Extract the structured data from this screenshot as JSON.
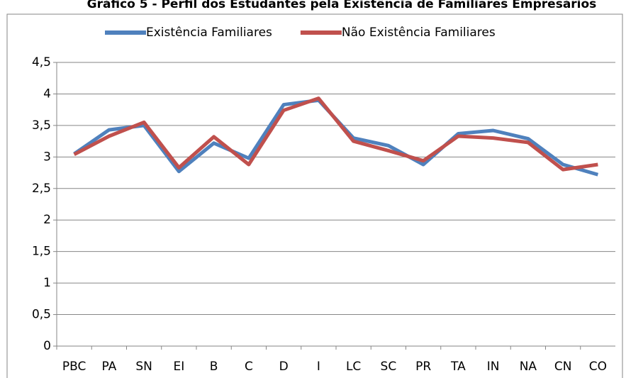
{
  "chart_data": {
    "type": "line",
    "title": "Gráfico 5 - Perfil dos Estudantes pela Existência de Familiares Empresários",
    "categories": [
      "PBC",
      "PA",
      "SN",
      "EI",
      "B",
      "C",
      "D",
      "I",
      "LC",
      "SC",
      "PR",
      "TA",
      "IN",
      "NA",
      "CN",
      "CO"
    ],
    "series": [
      {
        "name": "Existência Familiares",
        "color": "#4f81bd",
        "values": [
          3.05,
          3.43,
          3.5,
          2.77,
          3.22,
          2.98,
          3.83,
          3.9,
          3.3,
          3.18,
          2.88,
          3.37,
          3.42,
          3.29,
          2.88,
          2.72
        ]
      },
      {
        "name": "Não Existência Familiares",
        "color": "#c0504d",
        "values": [
          3.04,
          3.33,
          3.55,
          2.83,
          3.32,
          2.88,
          3.74,
          3.93,
          3.25,
          3.1,
          2.94,
          3.33,
          3.3,
          3.23,
          2.8,
          2.88
        ]
      }
    ],
    "ylim": [
      0,
      4.5
    ],
    "yticks": [
      0,
      {
        "value": 0.5,
        "label": "0,5"
      },
      1,
      {
        "value": 1.5,
        "label": "1,5"
      },
      2,
      {
        "value": 2.5,
        "label": "2,5"
      },
      3,
      {
        "value": 3.5,
        "label": "3,5"
      },
      4,
      {
        "value": 4.5,
        "label": "4,5"
      }
    ],
    "grid": true,
    "legend": "top"
  }
}
